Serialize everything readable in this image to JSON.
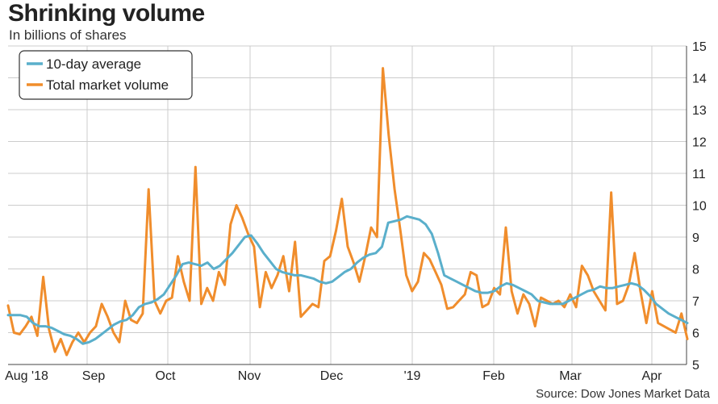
{
  "header": {
    "title": "Shrinking volume",
    "subtitle": "In billions of shares"
  },
  "footer": {
    "source": "Source: Dow Jones Market Data"
  },
  "colors": {
    "average": "#5aafcb",
    "total": "#f08d2c",
    "grid": "#cccccc",
    "axis": "#444444"
  },
  "chart_data": {
    "type": "line",
    "title": "Shrinking volume",
    "subtitle": "In billions of shares",
    "ylim": [
      5,
      15
    ],
    "y_ticks": [
      5,
      6,
      7,
      8,
      9,
      10,
      11,
      12,
      13,
      14,
      15
    ],
    "x_ticks": [
      "Aug '18",
      "Sep",
      "Oct",
      "Nov",
      "Dec",
      "'19",
      "Feb",
      "Mar",
      "Apr"
    ],
    "grid": true,
    "legend_position": "top-left",
    "series": [
      {
        "name": "10-day average",
        "values": [
          6.55,
          6.55,
          6.55,
          6.5,
          6.3,
          6.2,
          6.2,
          6.15,
          6.05,
          5.95,
          5.9,
          5.8,
          5.65,
          5.7,
          5.8,
          5.95,
          6.1,
          6.25,
          6.35,
          6.4,
          6.55,
          6.8,
          6.9,
          6.95,
          7.05,
          7.2,
          7.5,
          7.8,
          8.15,
          8.2,
          8.15,
          8.1,
          8.2,
          8.0,
          8.1,
          8.3,
          8.5,
          8.75,
          9.0,
          9.05,
          8.8,
          8.5,
          8.25,
          8.0,
          7.9,
          7.85,
          7.8,
          7.8,
          7.75,
          7.7,
          7.6,
          7.55,
          7.6,
          7.75,
          7.9,
          8.0,
          8.2,
          8.35,
          8.45,
          8.5,
          8.7,
          9.45,
          9.5,
          9.55,
          9.65,
          9.6,
          9.55,
          9.4,
          9.1,
          8.5,
          7.8,
          7.7,
          7.6,
          7.5,
          7.4,
          7.3,
          7.25,
          7.25,
          7.3,
          7.45,
          7.55,
          7.5,
          7.4,
          7.3,
          7.2,
          7.0,
          6.95,
          6.9,
          6.9,
          6.9,
          7.0,
          7.1,
          7.2,
          7.3,
          7.35,
          7.45,
          7.4,
          7.4,
          7.45,
          7.5,
          7.55,
          7.5,
          7.35,
          7.15,
          6.9,
          6.75,
          6.6,
          6.5,
          6.4,
          6.3
        ]
      },
      {
        "name": "Total market volume",
        "values": [
          6.85,
          6.0,
          5.95,
          6.2,
          6.5,
          5.9,
          7.75,
          6.1,
          5.4,
          5.8,
          5.3,
          5.7,
          6.0,
          5.7,
          6.0,
          6.2,
          6.9,
          6.5,
          6.0,
          5.7,
          7.0,
          6.4,
          6.3,
          6.6,
          10.5,
          7.0,
          6.6,
          7.0,
          7.1,
          8.4,
          7.6,
          7.0,
          11.2,
          6.9,
          7.4,
          7.0,
          7.9,
          7.5,
          9.4,
          10.0,
          9.6,
          9.1,
          8.7,
          6.8,
          7.9,
          7.4,
          7.8,
          8.4,
          7.3,
          8.85,
          6.5,
          6.7,
          6.9,
          6.8,
          8.25,
          8.4,
          9.2,
          10.2,
          8.7,
          8.2,
          7.6,
          8.4,
          9.3,
          9.0,
          14.3,
          12.2,
          10.5,
          9.2,
          7.8,
          7.3,
          7.6,
          8.5,
          8.3,
          7.9,
          7.5,
          6.75,
          6.8,
          7.0,
          7.2,
          7.9,
          7.8,
          6.8,
          6.9,
          7.4,
          7.2,
          9.3,
          7.3,
          6.6,
          7.2,
          6.9,
          6.2,
          7.1,
          7.0,
          6.9,
          7.0,
          6.8,
          7.2,
          6.8,
          8.1,
          7.8,
          7.3,
          7.0,
          6.7,
          10.4,
          6.9,
          7.0,
          7.5,
          8.5,
          7.3,
          6.3,
          7.3,
          6.3,
          6.2,
          6.1,
          6.0,
          6.6,
          5.8
        ]
      }
    ]
  }
}
